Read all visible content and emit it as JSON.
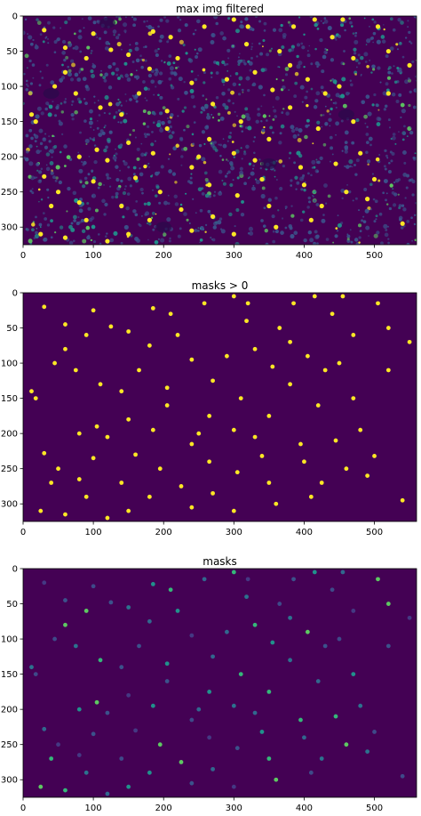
{
  "figure": {
    "panels": [
      {
        "title": "max img filtered"
      },
      {
        "title": "masks > 0"
      },
      {
        "title": "masks"
      }
    ]
  },
  "colors": {
    "background": "#440154",
    "dim": "#3b528b",
    "mid": "#21918c",
    "bright": "#5ec962",
    "max": "#fde725"
  },
  "chart_data": [
    {
      "type": "heatmap",
      "title": "max img filtered",
      "xlim": [
        0,
        560
      ],
      "ylim": [
        0,
        325
      ],
      "y_inverted": true,
      "xticks": [
        0,
        100,
        200,
        300,
        400,
        500
      ],
      "yticks": [
        0,
        50,
        100,
        150,
        200,
        250,
        300
      ],
      "colormap": "viridis",
      "grid": false
    },
    {
      "type": "heatmap",
      "title": "masks > 0",
      "xlim": [
        0,
        560
      ],
      "ylim": [
        0,
        325
      ],
      "y_inverted": true,
      "xticks": [
        0,
        100,
        200,
        300,
        400,
        500
      ],
      "yticks": [
        0,
        50,
        100,
        150,
        200,
        250,
        300
      ],
      "colormap": "viridis",
      "grid": false
    },
    {
      "type": "heatmap",
      "title": "masks",
      "xlim": [
        0,
        560
      ],
      "ylim": [
        0,
        325
      ],
      "y_inverted": true,
      "xticks": [
        0,
        100,
        200,
        300,
        400,
        500
      ],
      "yticks": [
        0,
        50,
        100,
        150,
        200,
        250,
        300
      ],
      "colormap": "viridis",
      "grid": false
    }
  ],
  "cells": [
    [
      125,
      48
    ],
    [
      185,
      22
    ],
    [
      258,
      15
    ],
    [
      300,
      5
    ],
    [
      318,
      40
    ],
    [
      365,
      50
    ],
    [
      405,
      90
    ],
    [
      240,
      95
    ],
    [
      165,
      110
    ],
    [
      205,
      135
    ],
    [
      270,
      125
    ],
    [
      110,
      130
    ],
    [
      75,
      110
    ],
    [
      45,
      100
    ],
    [
      90,
      60
    ],
    [
      30,
      20
    ],
    [
      60,
      45
    ],
    [
      220,
      60
    ],
    [
      180,
      75
    ],
    [
      330,
      80
    ],
    [
      380,
      70
    ],
    [
      440,
      30
    ],
    [
      505,
      15
    ],
    [
      550,
      70
    ],
    [
      520,
      110
    ],
    [
      470,
      150
    ],
    [
      420,
      160
    ],
    [
      350,
      175
    ],
    [
      300,
      195
    ],
    [
      240,
      215
    ],
    [
      195,
      250
    ],
    [
      160,
      230
    ],
    [
      120,
      205
    ],
    [
      80,
      200
    ],
    [
      30,
      228
    ],
    [
      40,
      270
    ],
    [
      90,
      290
    ],
    [
      140,
      270
    ],
    [
      225,
      275
    ],
    [
      265,
      240
    ],
    [
      305,
      255
    ],
    [
      340,
      232
    ],
    [
      400,
      240
    ],
    [
      445,
      210
    ],
    [
      490,
      260
    ],
    [
      410,
      290
    ],
    [
      360,
      300
    ],
    [
      300,
      310
    ],
    [
      240,
      305
    ],
    [
      180,
      290
    ],
    [
      120,
      320
    ],
    [
      60,
      315
    ],
    [
      12,
      140
    ],
    [
      18,
      150
    ],
    [
      105,
      190
    ],
    [
      150,
      180
    ],
    [
      205,
      160
    ],
    [
      265,
      175
    ],
    [
      330,
      205
    ],
    [
      395,
      215
    ],
    [
      480,
      195
    ],
    [
      540,
      295
    ],
    [
      460,
      250
    ],
    [
      50,
      250
    ],
    [
      100,
      235
    ],
    [
      150,
      310
    ],
    [
      270,
      285
    ],
    [
      350,
      270
    ],
    [
      425,
      270
    ],
    [
      500,
      232
    ],
    [
      25,
      310
    ],
    [
      80,
      265
    ],
    [
      140,
      140
    ],
    [
      185,
      195
    ],
    [
      250,
      200
    ],
    [
      310,
      150
    ],
    [
      380,
      130
    ],
    [
      450,
      100
    ],
    [
      520,
      50
    ],
    [
      470,
      60
    ],
    [
      430,
      110
    ],
    [
      355,
      105
    ],
    [
      290,
      90
    ],
    [
      210,
      30
    ],
    [
      150,
      55
    ],
    [
      100,
      25
    ],
    [
      60,
      80
    ],
    [
      320,
      15
    ],
    [
      385,
      15
    ],
    [
      415,
      5
    ],
    [
      455,
      5
    ]
  ]
}
